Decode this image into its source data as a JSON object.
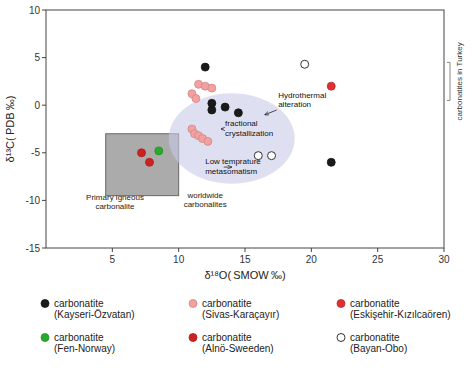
{
  "chart_data": {
    "type": "scatter",
    "xlabel": "δ¹⁸O( SMOW ‰)",
    "ylabel": "δ¹³C( PDB ‰)",
    "xlim": [
      0,
      30
    ],
    "ylim": [
      -15,
      10
    ],
    "xticks": [
      5,
      10,
      15,
      20,
      25,
      30
    ],
    "yticks": [
      -15,
      -10,
      -5,
      0,
      5,
      10
    ],
    "grid": false,
    "legend": "bottom",
    "series": [
      {
        "name": "carbonatite\n(Kayseri-Özvatan)",
        "color": "#1a1a1a",
        "marker": "circle",
        "x": [
          12.0,
          12.5,
          12.5,
          13.5,
          14.5,
          21.5
        ],
        "values": [
          4.0,
          0.2,
          -0.5,
          -0.2,
          -0.8,
          -6.0
        ]
      },
      {
        "name": "carbonatite\n(Sivas-Karaçayır)",
        "color": "#f4a0a0",
        "marker": "circle",
        "x": [
          11.0,
          11.3,
          11.5,
          12.0,
          12.5,
          11.0,
          11.2,
          11.5,
          11.8,
          12.2
        ],
        "values": [
          1.2,
          0.7,
          2.2,
          2.0,
          1.8,
          -2.5,
          -3.0,
          -3.2,
          -3.5,
          -3.8
        ]
      },
      {
        "name": "carbonatite\n(Eskişehir-Kızılcaören)",
        "color": "#e03030",
        "marker": "circle",
        "x": [
          21.5
        ],
        "values": [
          2.0
        ]
      },
      {
        "name": "carbonatite\n(Fen-Norway)",
        "color": "#2aaa2a",
        "marker": "circle",
        "x": [
          8.5
        ],
        "values": [
          -4.8
        ]
      },
      {
        "name": "carbonatite\n(Alnö-Sweeden)",
        "color": "#cc2222",
        "marker": "circle",
        "x": [
          7.2,
          7.8
        ],
        "values": [
          -5.0,
          -6.0
        ]
      },
      {
        "name": "carbonatite\n(Bayan-Obo)",
        "color": "white",
        "marker": "open-circle",
        "x": [
          19.5,
          16.0,
          17.0
        ],
        "values": [
          4.3,
          -5.3,
          -5.3
        ]
      }
    ],
    "shapes": [
      {
        "kind": "rectangle",
        "x": 4.5,
        "y": -9.5,
        "width": 5.5,
        "height": 6.5,
        "color": "#888888"
      },
      {
        "kind": "ellipse",
        "cx": 14.0,
        "cy": -3.5,
        "width": 9.5,
        "height": 9.5,
        "color": "#c8cce8"
      }
    ],
    "annotations": [
      {
        "text": "Hydrothermal\nalteration",
        "x": 17.5,
        "y": -0.2,
        "arrow_x": 16.5,
        "arrow_y": -1.0
      },
      {
        "text": "fractional\ncrystallization",
        "x": 13.5,
        "y": -3.2,
        "arrow_x": 13.2,
        "arrow_y": -2.5
      },
      {
        "text": "Low temprature\nmetasomatism",
        "x": 12.0,
        "y": -7.2,
        "arrow_x": 14.0,
        "arrow_y": -6.5
      },
      {
        "text": "worldwide\ncarbonalites",
        "x": 12.0,
        "y": -9.0
      },
      {
        "text": "Primary igneous\ncarbonalite",
        "x": 5.2,
        "y": -9.2
      },
      {
        "text": "carbonatites in Turkey",
        "kind": "bracket"
      }
    ]
  }
}
